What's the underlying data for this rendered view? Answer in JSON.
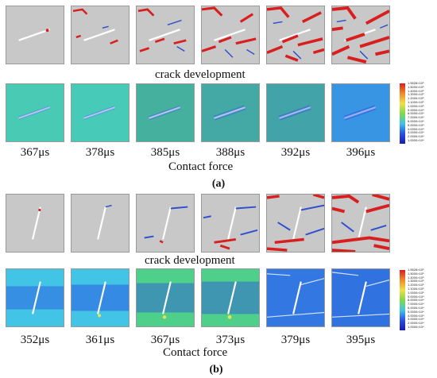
{
  "figure": {
    "a": {
      "label": "(a)",
      "crack_caption": "crack development",
      "force_caption": "Contact force",
      "times": [
        "367μs",
        "378μs",
        "385μs",
        "388μs",
        "392μs",
        "396μs"
      ]
    },
    "b": {
      "label": "(b)",
      "crack_caption": "crack development",
      "force_caption": "Contact force",
      "times": [
        "352μs",
        "361μs",
        "367μs",
        "373μs",
        "379μs",
        "395μs"
      ]
    },
    "legend_ticks": [
      "1.5528×10⁵",
      "1.5000×10⁵",
      "1.4000×10⁵",
      "1.3000×10⁵",
      "1.2000×10⁵",
      "1.1000×10⁵",
      "1.0000×10⁵",
      "9.0000×10⁴",
      "8.0000×10⁴",
      "7.0000×10⁴",
      "6.0000×10⁴",
      "5.0000×10⁴",
      "4.0000×10⁴",
      "3.0000×10⁴",
      "2.0000×10⁴",
      "1.0000×10⁴"
    ],
    "colors": {
      "particle_gray": "#c8c8c8",
      "crack_red": "#d81e1e",
      "crack_blue": "#2f4fd0",
      "force_blue": "#2a4fe0",
      "force_green": "#4fd08a",
      "force_cyan": "#41c4e6",
      "force_yellow": "#f0e04a"
    }
  }
}
